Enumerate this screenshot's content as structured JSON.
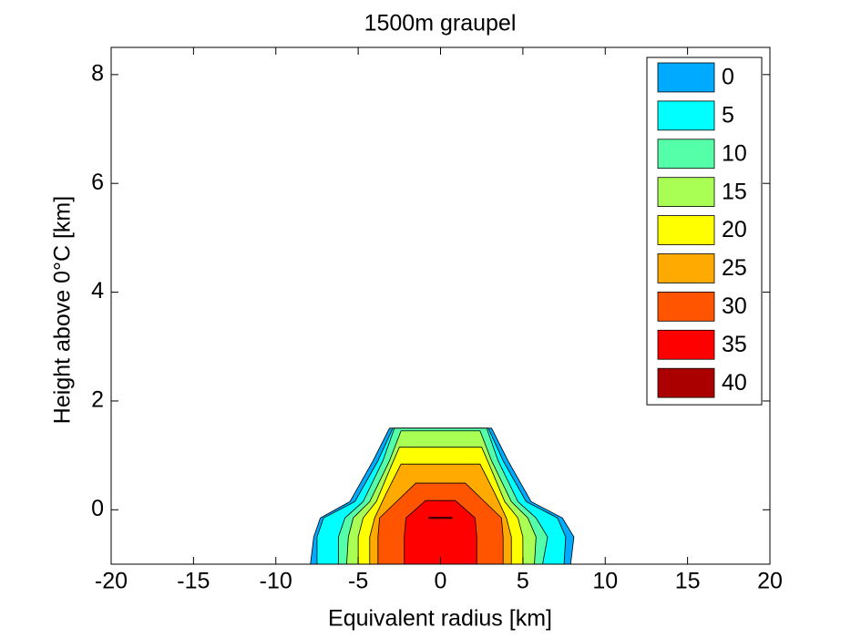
{
  "chart_data": {
    "type": "contourf",
    "title": "1500m graupel",
    "x_label": "Equivalent radius [km]",
    "y_label": "Height above 0°C [km]",
    "xlim": [
      -20,
      20
    ],
    "xticks": [
      -20,
      -15,
      -10,
      -5,
      0,
      5,
      10,
      15,
      20
    ],
    "ylim": [
      -1,
      8.5
    ],
    "yticks": [
      0,
      2,
      4,
      6,
      8
    ],
    "levels": [
      0,
      5,
      10,
      15,
      20,
      25,
      30,
      35,
      40
    ],
    "colors": [
      "#00aaff",
      "#00ffff",
      "#55ffaa",
      "#aaff55",
      "#ffff00",
      "#ffaa00",
      "#ff5500",
      "#ff0000",
      "#aa0000"
    ],
    "regions": [
      [
        [
          -7.9,
          -1
        ],
        [
          -7.7,
          -0.5
        ],
        [
          -7.3,
          -0.15
        ],
        [
          -5.5,
          0.15
        ],
        [
          -4.1,
          0.9
        ],
        [
          -3.1,
          1.5
        ],
        [
          3.1,
          1.5
        ],
        [
          4.1,
          0.9
        ],
        [
          5.5,
          0.15
        ],
        [
          7.4,
          -0.15
        ],
        [
          8.1,
          -0.5
        ],
        [
          7.9,
          -1
        ]
      ],
      [
        [
          -7.5,
          -1
        ],
        [
          -7.5,
          -0.5
        ],
        [
          -7.1,
          -0.15
        ],
        [
          -5.2,
          0.15
        ],
        [
          -3.8,
          0.9
        ],
        [
          -2.9,
          1.5
        ],
        [
          2.9,
          1.5
        ],
        [
          3.8,
          0.9
        ],
        [
          5.2,
          0.15
        ],
        [
          7.1,
          -0.15
        ],
        [
          7.6,
          -0.5
        ],
        [
          7.5,
          -1
        ]
      ],
      [
        [
          -6.2,
          -1
        ],
        [
          -6.2,
          -0.5
        ],
        [
          -5.8,
          -0.15
        ],
        [
          -4.7,
          0.15
        ],
        [
          -3.5,
          0.9
        ],
        [
          -2.8,
          1.5
        ],
        [
          2.8,
          1.5
        ],
        [
          3.5,
          0.9
        ],
        [
          4.7,
          0.15
        ],
        [
          5.8,
          -0.15
        ],
        [
          6.5,
          -0.5
        ],
        [
          6.2,
          -1
        ]
      ],
      [
        [
          -5.7,
          -1
        ],
        [
          -5.6,
          -0.5
        ],
        [
          -5.3,
          -0.15
        ],
        [
          -4.3,
          0.15
        ],
        [
          -3.1,
          0.9
        ],
        [
          -2.4,
          1.45
        ],
        [
          2.4,
          1.45
        ],
        [
          3.1,
          0.9
        ],
        [
          4.3,
          0.15
        ],
        [
          5.3,
          -0.15
        ],
        [
          5.8,
          -0.5
        ],
        [
          5.7,
          -1
        ]
      ],
      [
        [
          -5,
          -1
        ],
        [
          -5,
          -0.5
        ],
        [
          -4.7,
          -0.15
        ],
        [
          -3.9,
          0.15
        ],
        [
          -3,
          0.8
        ],
        [
          -2.5,
          1.15
        ],
        [
          2.5,
          1.15
        ],
        [
          3,
          0.8
        ],
        [
          3.9,
          0.15
        ],
        [
          4.7,
          -0.15
        ],
        [
          5,
          -0.5
        ],
        [
          5,
          -1
        ]
      ],
      [
        [
          -4.3,
          -1
        ],
        [
          -4.3,
          -0.5
        ],
        [
          -4,
          -0.15
        ],
        [
          -3.3,
          0.3
        ],
        [
          -2.4,
          0.84
        ],
        [
          2.4,
          0.84
        ],
        [
          3.3,
          0.3
        ],
        [
          4,
          -0.15
        ],
        [
          4.3,
          -0.5
        ],
        [
          4.3,
          -1
        ]
      ],
      [
        [
          -3.8,
          -1
        ],
        [
          -3.8,
          -0.5
        ],
        [
          -3.7,
          -0.15
        ],
        [
          -2.5,
          0.2
        ],
        [
          -1.5,
          0.49
        ],
        [
          1.5,
          0.49
        ],
        [
          2.5,
          0.2
        ],
        [
          3.7,
          -0.15
        ],
        [
          3.8,
          -0.5
        ],
        [
          3.8,
          -1
        ]
      ],
      [
        [
          -2.2,
          -1
        ],
        [
          -2.2,
          -0.5
        ],
        [
          -2.1,
          -0.15
        ],
        [
          -0.9,
          0.17
        ],
        [
          0.9,
          0.17
        ],
        [
          2.1,
          -0.15
        ],
        [
          2.2,
          -0.5
        ],
        [
          2.2,
          -1
        ]
      ],
      [
        [
          -0.7,
          -0.16
        ],
        [
          0.7,
          -0.16
        ],
        [
          0.7,
          -0.14
        ],
        [
          -0.7,
          -0.14
        ]
      ]
    ],
    "legend": "upper right"
  }
}
